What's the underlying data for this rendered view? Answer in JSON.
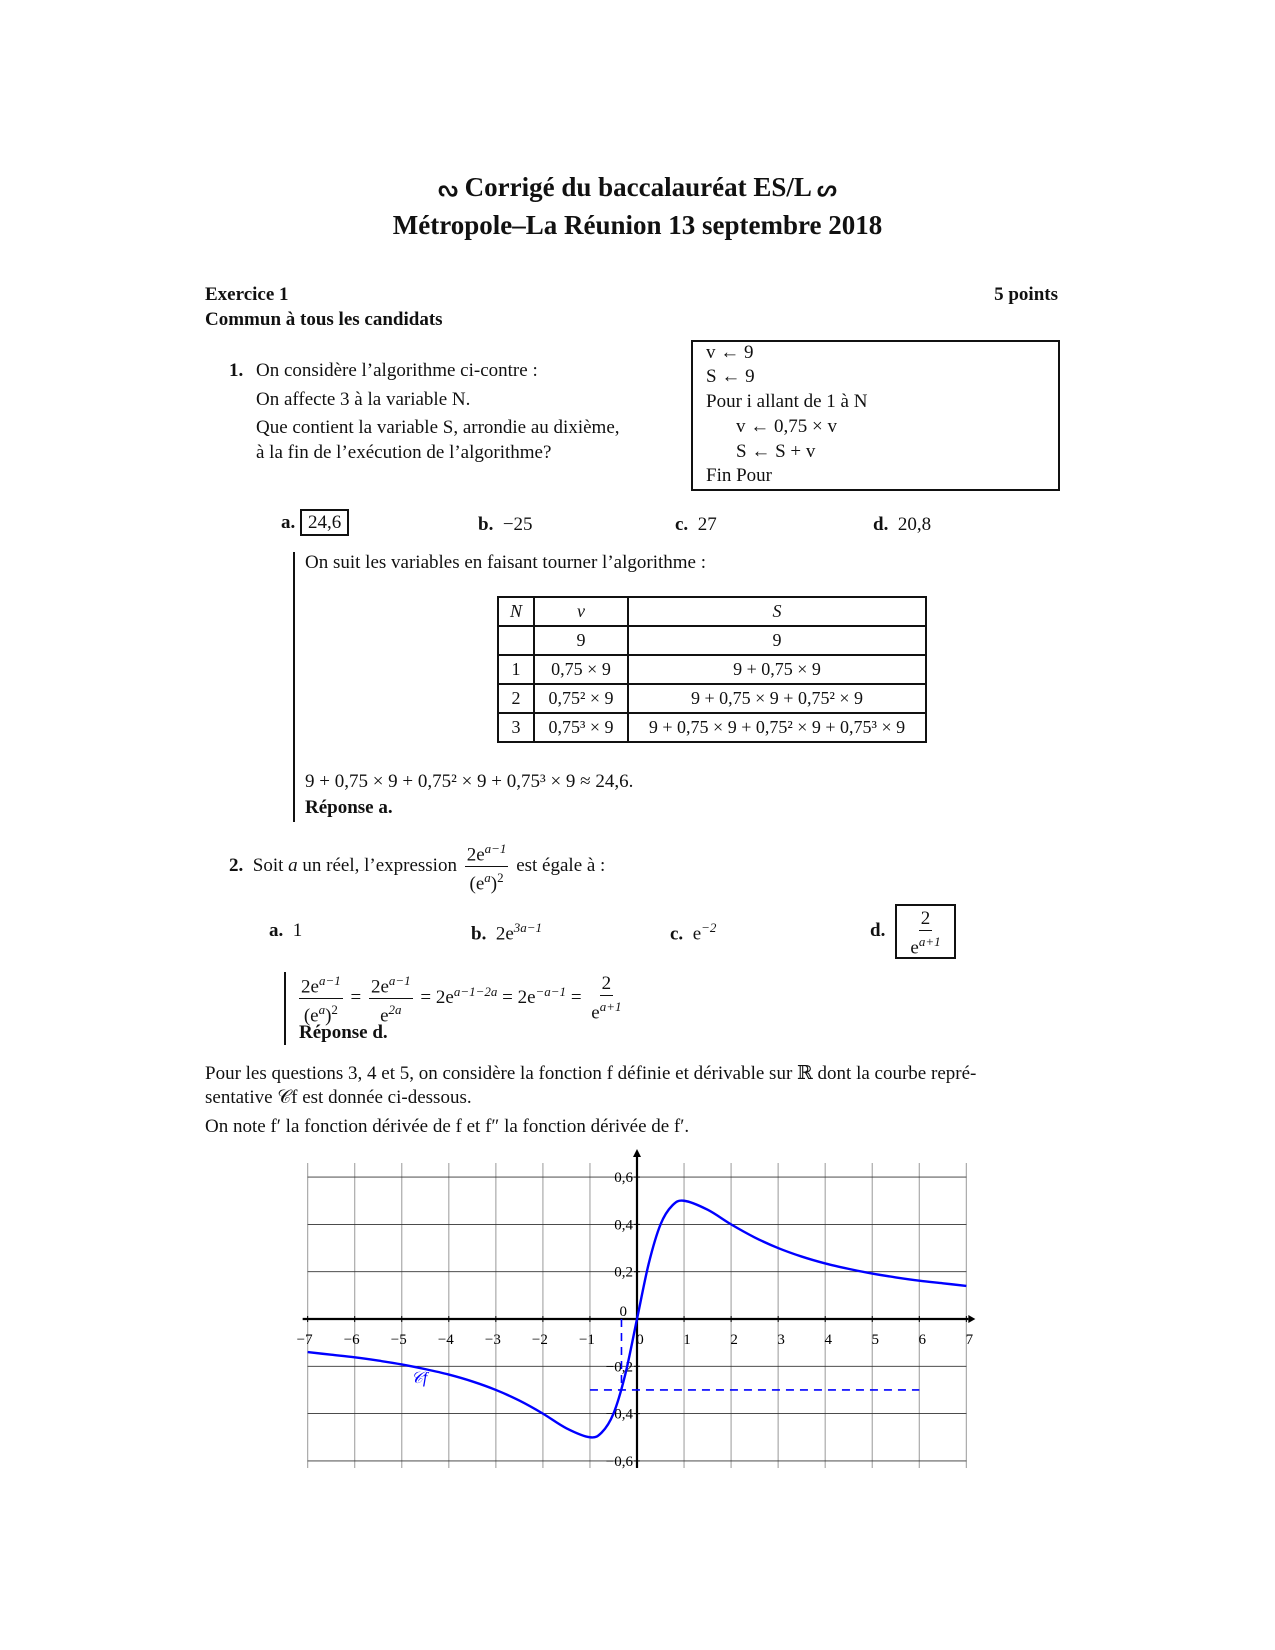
{
  "header": {
    "title_line1": "Corrigé du baccalauréat ES/L",
    "ornament_left": "ᔓ",
    "ornament_right": "ᔕ",
    "title_line2": "Métropole–La Réunion 13 septembre 2018"
  },
  "exercise": {
    "title": "Exercice 1",
    "points": "5 points",
    "subtitle": "Commun à tous les candidats"
  },
  "q1": {
    "number": "1.",
    "lines": [
      "On considère l’algorithme ci-contre :",
      "On affecte 3 à la variable N.",
      "Que contient la variable S, arrondie au dixième,",
      "à la fin de l’exécution de l’algorithme?"
    ],
    "algorithm": [
      "v ← 9",
      "S ← 9",
      "Pour i allant de 1 à N",
      "v ← 0,75 × v",
      "S ← S + v",
      "Fin Pour"
    ],
    "options": [
      {
        "letter": "a.",
        "value": "24,6",
        "correct": true
      },
      {
        "letter": "b.",
        "value": "−25"
      },
      {
        "letter": "c.",
        "value": "27"
      },
      {
        "letter": "d.",
        "value": "20,8"
      }
    ],
    "intro": "On suit les variables en faisant tourner l’algorithme :",
    "table": {
      "headers": [
        "N",
        "v",
        "S"
      ],
      "rows": [
        [
          "",
          "9",
          "9"
        ],
        [
          "1",
          "0,75 × 9",
          "9 + 0,75 × 9"
        ],
        [
          "2",
          "0,75² × 9",
          "9 + 0,75 × 9 + 0,75² × 9"
        ],
        [
          "3",
          "0,75³ × 9",
          "9 + 0,75 × 9 + 0,75² × 9 + 0,75³ × 9"
        ]
      ]
    },
    "result": "9 + 0,75 × 9 + 0,75² × 9 + 0,75³ × 9 ≈ 24,6.",
    "answer": "Réponse a."
  },
  "q2": {
    "number": "2.",
    "text_before": "Soit",
    "var": "a",
    "text_mid": "un réel, l’expression",
    "text_after": "est égale à :",
    "expr": {
      "num_base": "2e",
      "num_exp": "a−1",
      "den_base": "(e",
      "den_exp": "a",
      "den_close": ")",
      "den_pow": "2"
    },
    "options": [
      {
        "letter": "a.",
        "value": "1"
      },
      {
        "letter": "b.",
        "base": "2e",
        "exp": "3a−1"
      },
      {
        "letter": "c.",
        "base": "e",
        "exp": "−2"
      },
      {
        "letter": "d.",
        "num": "2",
        "den_base": "e",
        "den_exp": "a+1",
        "correct": true
      }
    ],
    "solution": {
      "eq": "=",
      "f2_den_base": "e",
      "f2_den_exp": "2a",
      "t3_base": "2e",
      "t3_exp": "a−1−2a",
      "t4_base": "2e",
      "t4_exp": "−a−1",
      "f5_num": "2",
      "f5_den_base": "e",
      "f5_den_exp": "a+1"
    },
    "answer": "Réponse d."
  },
  "intro_345": {
    "line1": "Pour les questions 3, 4 et 5, on considère la fonction f définie et dérivable sur ℝ dont la courbe repré-",
    "line2": "sentative 𝒞f est donnée ci-dessous.",
    "line3": "On note f′ la fonction dérivée de f et f″ la fonction dérivée de f′."
  },
  "chart_data": {
    "type": "line",
    "title": "",
    "xlabel": "",
    "ylabel": "",
    "xlim": [
      -7,
      7
    ],
    "ylim": [
      -0.6,
      0.6
    ],
    "grid": true,
    "x_ticks": [
      "−7",
      "−6",
      "−5",
      "−4",
      "−3",
      "−2",
      "−1",
      "0",
      "1",
      "2",
      "3",
      "4",
      "5",
      "6",
      "7"
    ],
    "y_ticks": [
      "0,6",
      "0,4",
      "0,2",
      "0",
      "−0,2",
      "−0,4",
      "−0,6"
    ],
    "curve_label": "𝒞f",
    "curve_color": "#0000ff",
    "series": [
      {
        "x": [
          -7,
          -6.5,
          -6,
          -5.5,
          -5,
          -4.5,
          -4,
          -3.5,
          -3,
          -2.5,
          -2,
          -1.5,
          -1,
          -0.75,
          -0.5,
          -0.25,
          0,
          0.25,
          0.5,
          0.75,
          1,
          1.5,
          2,
          2.5,
          3,
          3.5,
          4,
          4.5,
          5,
          5.5,
          6,
          6.5,
          7
        ],
        "y": [
          -0.14,
          -0.151,
          -0.162,
          -0.176,
          -0.192,
          -0.212,
          -0.235,
          -0.264,
          -0.3,
          -0.345,
          -0.4,
          -0.462,
          -0.5,
          -0.48,
          -0.4,
          -0.235,
          0,
          0.235,
          0.4,
          0.48,
          0.5,
          0.462,
          0.4,
          0.345,
          0.3,
          0.264,
          0.235,
          0.212,
          0.192,
          0.176,
          0.162,
          0.151,
          0.14
        ]
      }
    ],
    "annotations": [
      {
        "type": "dashed-horizontal",
        "y": -0.3,
        "x_from": -1,
        "x_to": 6
      },
      {
        "type": "dashed-vertical",
        "x": -0.33,
        "y_from": 0,
        "y_to": -0.3
      }
    ]
  }
}
